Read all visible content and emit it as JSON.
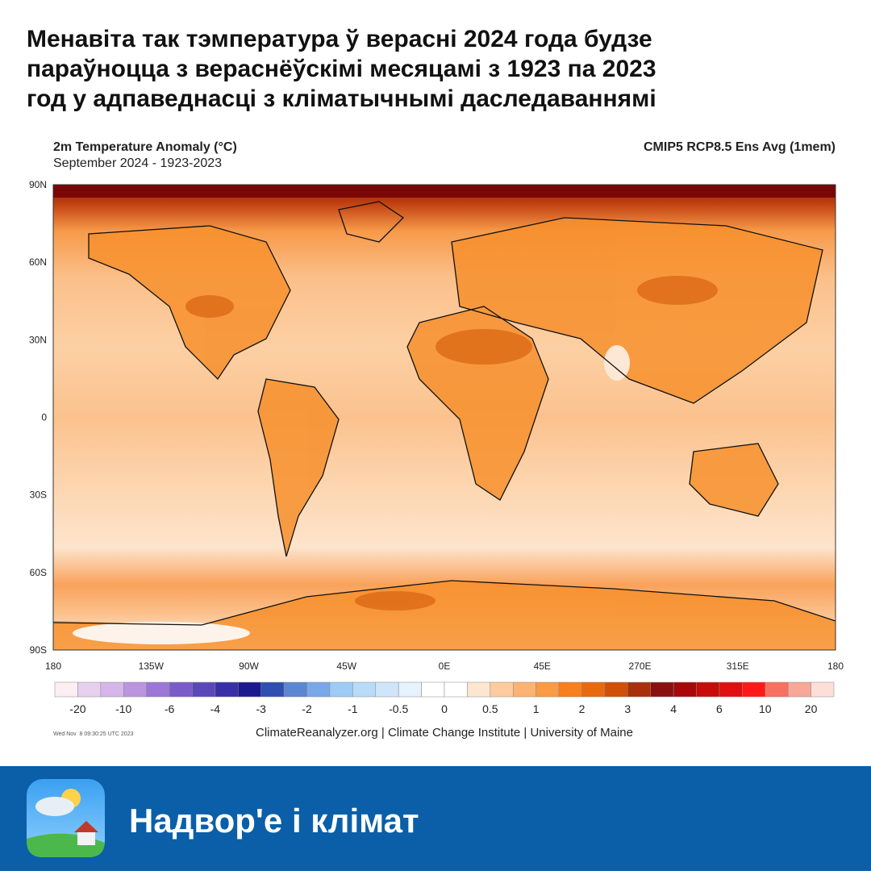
{
  "header": {
    "title_lines": [
      "Менавіта так тэмпература ў верасні 2024 года будзе",
      "параўноцца з вераснёўскімі месяцамі з 1923 па 2023",
      "год у адпаведнасці з кліматычнымі даследаваннямі"
    ]
  },
  "map": {
    "title": "2m Temperature Anomaly (°C)",
    "subtitle": "September 2024 - 1923-2023",
    "model": "CMIP5 RCP8.5 Ens Avg (1mem)",
    "lat_labels": [
      "90N",
      "60N",
      "30N",
      "0",
      "30S",
      "60S",
      "90S"
    ],
    "lon_labels": [
      "180",
      "135W",
      "90W",
      "45W",
      "0E",
      "45E",
      "270E",
      "315E",
      "180"
    ],
    "colorbar": {
      "labels": [
        "-20",
        "-10",
        "-6",
        "-4",
        "-3",
        "-2",
        "-1",
        "-0.5",
        "0",
        "0.5",
        "1",
        "2",
        "3",
        "4",
        "6",
        "10",
        "20"
      ],
      "colors": [
        "#fdeef4",
        "#e6d0ee",
        "#d6b6e8",
        "#bc95e0",
        "#9c76d6",
        "#7a5cc8",
        "#5a48b8",
        "#3a2fa6",
        "#1c1a8e",
        "#2f4fb0",
        "#5a86d2",
        "#79a8e8",
        "#9ccbf4",
        "#b8dbf8",
        "#cfe6fa",
        "#e6f2fc",
        "#ffffff",
        "#ffffff",
        "#fde6d0",
        "#fccc9e",
        "#fbb373",
        "#f99a45",
        "#f7801c",
        "#e86a0e",
        "#d0500a",
        "#a8300a",
        "#8a1010",
        "#a80808",
        "#c80a0a",
        "#e01010",
        "#ff1a1a",
        "#f87060",
        "#f8a898",
        "#fce0d8"
      ]
    },
    "timestamp": "Wed Nov  8 09:30:25 UTC 2023",
    "credits": "ClimateReanalyzer.org | Climate Change Institute | University of Maine"
  },
  "footer": {
    "brand": "Надвор'е і клімат"
  }
}
